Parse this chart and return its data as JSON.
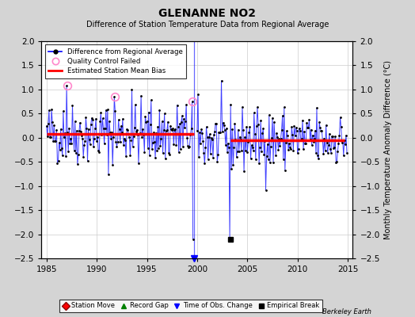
{
  "title": "GLENANNE NO2",
  "subtitle": "Difference of Station Temperature Data from Regional Average",
  "ylabel": "Monthly Temperature Anomaly Difference (°C)",
  "xlim": [
    1984.5,
    2015.5
  ],
  "ylim": [
    -2.5,
    2.0
  ],
  "yticks": [
    -2.5,
    -2.0,
    -1.5,
    -1.0,
    -0.5,
    0.0,
    0.5,
    1.0,
    1.5,
    2.0
  ],
  "xticks": [
    1985,
    1990,
    1995,
    2000,
    2005,
    2010,
    2015
  ],
  "background_color": "#d4d4d4",
  "plot_bg_color": "#ffffff",
  "grid_color": "#cccccc",
  "bias_line1_x": [
    1985.0,
    1999.7
  ],
  "bias_line1_y": [
    0.08,
    0.08
  ],
  "bias_line2_x": [
    2003.3,
    2014.7
  ],
  "bias_line2_y": [
    -0.05,
    -0.05
  ],
  "obs_change_x": 1999.7,
  "empirical_break_x": 2003.3,
  "qc_fail_points_x": [
    1987.08,
    1991.83,
    1999.5
  ],
  "qc_fail_points_y": [
    1.08,
    0.85,
    0.75
  ],
  "seed": 42
}
